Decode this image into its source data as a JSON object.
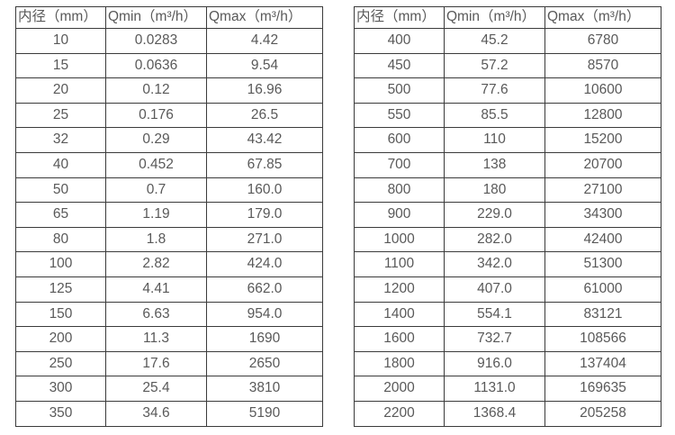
{
  "colors": {
    "text": "#595959",
    "border": "#3b3b3b",
    "background": "#ffffff"
  },
  "columns": [
    "内径（mm）",
    "Qmin（m³/h）",
    "Qmax（m³/h）"
  ],
  "left_table": {
    "rows": [
      [
        "10",
        "0.0283",
        "4.42"
      ],
      [
        "15",
        "0.0636",
        "9.54"
      ],
      [
        "20",
        "0.12",
        "16.96"
      ],
      [
        "25",
        "0.176",
        "26.5"
      ],
      [
        "32",
        "0.29",
        "43.42"
      ],
      [
        "40",
        "0.452",
        "67.85"
      ],
      [
        "50",
        "0.7",
        "160.0"
      ],
      [
        "65",
        "1.19",
        "179.0"
      ],
      [
        "80",
        "1.8",
        "271.0"
      ],
      [
        "100",
        "2.82",
        "424.0"
      ],
      [
        "125",
        "4.41",
        "662.0"
      ],
      [
        "150",
        "6.63",
        "954.0"
      ],
      [
        "200",
        "11.3",
        "1690"
      ],
      [
        "250",
        "17.6",
        "2650"
      ],
      [
        "300",
        "25.4",
        "3810"
      ],
      [
        "350",
        "34.6",
        "5190"
      ]
    ]
  },
  "right_table": {
    "rows": [
      [
        "400",
        "45.2",
        "6780"
      ],
      [
        "450",
        "57.2",
        "8570"
      ],
      [
        "500",
        "77.6",
        "10600"
      ],
      [
        "550",
        "85.5",
        "12800"
      ],
      [
        "600",
        "110",
        "15200"
      ],
      [
        "700",
        "138",
        "20700"
      ],
      [
        "800",
        "180",
        "27100"
      ],
      [
        "900",
        "229.0",
        "34300"
      ],
      [
        "1000",
        "282.0",
        "42400"
      ],
      [
        "1100",
        "342.0",
        "51300"
      ],
      [
        "1200",
        "407.0",
        "61000"
      ],
      [
        "1400",
        "554.1",
        "83121"
      ],
      [
        "1600",
        "732.7",
        "108566"
      ],
      [
        "1800",
        "916.0",
        "137404"
      ],
      [
        "2000",
        "1131.0",
        "169635"
      ],
      [
        "2200",
        "1368.4",
        "205258"
      ]
    ]
  }
}
